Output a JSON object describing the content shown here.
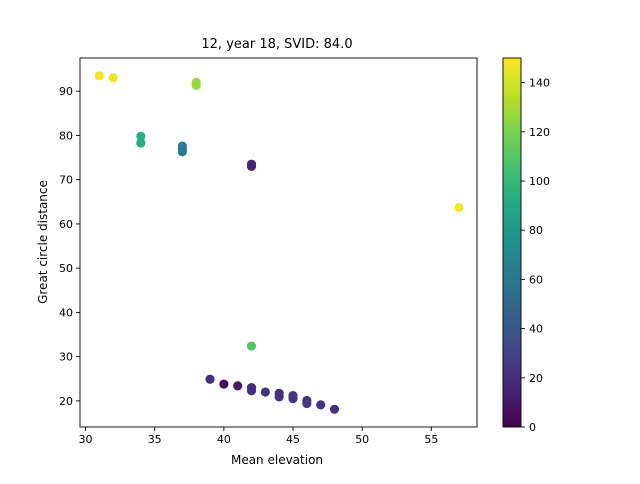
{
  "chart_data": {
    "type": "scatter",
    "title": "12, year 18, SVID: 84.0",
    "xlabel": "Mean elevation",
    "ylabel": "Great circle distance",
    "xlim": [
      29.6,
      58.3
    ],
    "ylim": [
      14.1,
      97.5
    ],
    "xticks": [
      30,
      35,
      40,
      45,
      50,
      55
    ],
    "yticks": [
      20,
      30,
      40,
      50,
      60,
      70,
      80,
      90
    ],
    "grid": false,
    "colormap": "viridis",
    "colorbar": {
      "min": 0,
      "max": 150,
      "ticks": [
        0,
        20,
        40,
        60,
        80,
        100,
        120,
        140
      ]
    },
    "points": [
      {
        "x": 31,
        "y": 93.5,
        "c": 148
      },
      {
        "x": 32,
        "y": 93.0,
        "c": 146
      },
      {
        "x": 38,
        "y": 92.0,
        "c": 128
      },
      {
        "x": 38,
        "y": 91.3,
        "c": 127
      },
      {
        "x": 34,
        "y": 79.8,
        "c": 95
      },
      {
        "x": 34,
        "y": 78.3,
        "c": 92
      },
      {
        "x": 37,
        "y": 77.6,
        "c": 65
      },
      {
        "x": 37,
        "y": 76.9,
        "c": 63
      },
      {
        "x": 37,
        "y": 76.3,
        "c": 62
      },
      {
        "x": 42,
        "y": 73.5,
        "c": 16
      },
      {
        "x": 42,
        "y": 73.0,
        "c": 14
      },
      {
        "x": 57,
        "y": 63.7,
        "c": 148
      },
      {
        "x": 42,
        "y": 32.4,
        "c": 108
      },
      {
        "x": 39,
        "y": 24.9,
        "c": 20
      },
      {
        "x": 40,
        "y": 23.8,
        "c": 6
      },
      {
        "x": 41,
        "y": 23.4,
        "c": 10
      },
      {
        "x": 42,
        "y": 23.0,
        "c": 18
      },
      {
        "x": 42,
        "y": 22.3,
        "c": 20
      },
      {
        "x": 43,
        "y": 22.0,
        "c": 22
      },
      {
        "x": 44,
        "y": 21.7,
        "c": 20
      },
      {
        "x": 44,
        "y": 20.9,
        "c": 22
      },
      {
        "x": 45,
        "y": 21.2,
        "c": 22
      },
      {
        "x": 45,
        "y": 20.5,
        "c": 24
      },
      {
        "x": 46,
        "y": 20.1,
        "c": 22
      },
      {
        "x": 46,
        "y": 19.4,
        "c": 24
      },
      {
        "x": 47,
        "y": 19.1,
        "c": 22
      },
      {
        "x": 48,
        "y": 18.1,
        "c": 20
      }
    ]
  }
}
